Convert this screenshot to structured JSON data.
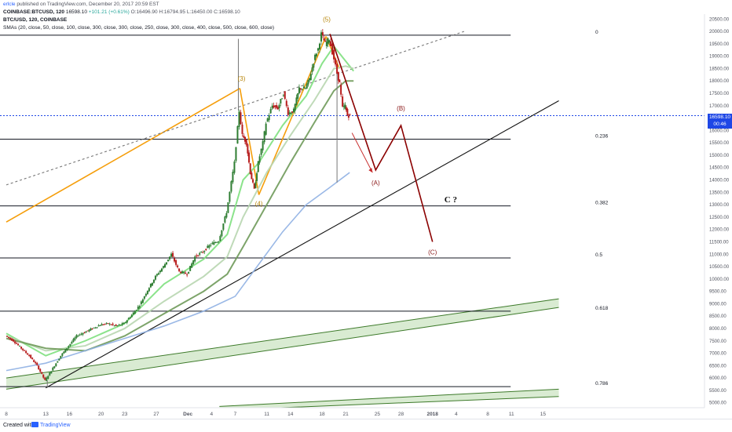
{
  "header": {
    "author": "erlcle",
    "published": "published on TradingView.com, December 20, 2017 20:59 EST",
    "symbol_line": {
      "symbol": "COINBASE:BTCUSD, 120",
      "price": "16598.10",
      "change": "+101.21 (+0.61%)",
      "ohlc": "O:16496.90 H:16794.95 L:16450.00 C:16598.10"
    },
    "instrument": "BTC/USD, 120, COINBASE",
    "indicators": "SMAs (20, close, 50, close, 100, close, 300, close, 300, close, 250, close, 300, close, 400, close, 500, close, 600, close)"
  },
  "footer": {
    "created_with": "Created with",
    "brand": "TradingView"
  },
  "price_box": {
    "value": "16598.10",
    "countdown": "00:46"
  },
  "colors": {
    "price_line": "#1e47e6",
    "fib": "#131722",
    "orange_wave": "#f59e0b",
    "red_wave": "#8b0000",
    "wave_label": "#b8860b",
    "red_label": "#8b1a1a",
    "sma_blue": "#8fb0e3",
    "channel_fill": "#cfe6c7",
    "channel_line": "#3d7a2a",
    "candle_up": "#2e7d32",
    "candle_down": "#b71c1c"
  },
  "chart_data": {
    "type": "candlestick",
    "symbol": "BTC/USD",
    "timeframe": "120",
    "exchange": "COINBASE",
    "y_axis": {
      "ylim": [
        4800,
        20700
      ],
      "ticks": [
        "20500.00",
        "20000.00",
        "19500.00",
        "19000.00",
        "18500.00",
        "18000.00",
        "17500.00",
        "17000.00",
        "16500.00",
        "16000.00",
        "15500.00",
        "15000.00",
        "14500.00",
        "14000.00",
        "13500.00",
        "13000.00",
        "12500.00",
        "12000.00",
        "11500.00",
        "11000.00",
        "10500.00",
        "10000.00",
        "9500.00",
        "9000.00",
        "8500.00",
        "8000.00",
        "7500.00",
        "7000.00",
        "6500.00",
        "6000.00",
        "5500.00",
        "5000.00"
      ]
    },
    "x_axis": {
      "labels": [
        "8",
        "13",
        "16",
        "20",
        "23",
        "27",
        "Dec",
        "4",
        "7",
        "11",
        "14",
        "18",
        "21",
        "25",
        "28",
        "2018",
        "4",
        "8",
        "11",
        "15"
      ],
      "day_index": [
        0,
        5,
        8,
        12,
        15,
        19,
        23,
        26,
        29,
        33,
        36,
        40,
        43,
        47,
        50,
        54,
        57,
        61,
        64,
        68
      ]
    },
    "price_path": [
      [
        0,
        7700
      ],
      [
        1,
        7500
      ],
      [
        2,
        7200
      ],
      [
        3,
        6900
      ],
      [
        4,
        6500
      ],
      [
        5,
        5900
      ],
      [
        6,
        6400
      ],
      [
        7,
        6900
      ],
      [
        8,
        7300
      ],
      [
        9,
        7700
      ],
      [
        10,
        7850
      ],
      [
        11,
        8000
      ],
      [
        12,
        8150
      ],
      [
        13,
        8200
      ],
      [
        14,
        8100
      ],
      [
        15,
        8200
      ],
      [
        16,
        8550
      ],
      [
        17,
        8950
      ],
      [
        18,
        9550
      ],
      [
        19,
        10100
      ],
      [
        20,
        10500
      ],
      [
        21,
        11000
      ],
      [
        22,
        10300
      ],
      [
        23,
        10200
      ],
      [
        24,
        10900
      ],
      [
        25,
        11100
      ],
      [
        26,
        11400
      ],
      [
        27,
        11550
      ],
      [
        28,
        12700
      ],
      [
        29,
        14700
      ],
      [
        29.6,
        16800
      ],
      [
        30,
        15800
      ],
      [
        30.5,
        15500
      ],
      [
        31,
        14300
      ],
      [
        31.5,
        13600
      ],
      [
        32,
        14700
      ],
      [
        32.6,
        15500
      ],
      [
        33,
        16300
      ],
      [
        33.8,
        17000
      ],
      [
        34.5,
        16900
      ],
      [
        35.2,
        17500
      ],
      [
        35.8,
        16700
      ],
      [
        36.5,
        16800
      ],
      [
        37.2,
        17700
      ],
      [
        38,
        17700
      ],
      [
        38.5,
        18100
      ],
      [
        39.2,
        19000
      ],
      [
        39.6,
        19300
      ],
      [
        40,
        19900
      ],
      [
        40.5,
        19500
      ],
      [
        41,
        19700
      ],
      [
        41.6,
        18900
      ],
      [
        42,
        18300
      ],
      [
        42.3,
        17900
      ],
      [
        42.7,
        16900
      ],
      [
        43,
        17000
      ],
      [
        43.3,
        16600
      ],
      [
        43.6,
        16598
      ]
    ],
    "wicks": [
      [
        29.4,
        19700
      ],
      [
        41.9,
        13900
      ],
      [
        5.2,
        5600
      ]
    ],
    "sma_lines": [
      {
        "name": "SMA 20",
        "color": "#7ee07e",
        "points": [
          [
            0,
            7800
          ],
          [
            5,
            6900
          ],
          [
            10,
            7500
          ],
          [
            15,
            8200
          ],
          [
            20,
            9800
          ],
          [
            25,
            10800
          ],
          [
            28,
            11800
          ],
          [
            30,
            14000
          ],
          [
            32,
            14700
          ],
          [
            35,
            16200
          ],
          [
            38,
            17400
          ],
          [
            40,
            18700
          ],
          [
            41.5,
            19400
          ],
          [
            43,
            18800
          ],
          [
            44,
            18400
          ]
        ]
      },
      {
        "name": "SMA 50",
        "color": "#b8d6b0",
        "points": [
          [
            0,
            7700
          ],
          [
            5,
            7100
          ],
          [
            10,
            7300
          ],
          [
            15,
            8000
          ],
          [
            20,
            9100
          ],
          [
            25,
            10100
          ],
          [
            28,
            10900
          ],
          [
            30,
            12500
          ],
          [
            33,
            14300
          ],
          [
            36,
            15800
          ],
          [
            39,
            17200
          ],
          [
            41.5,
            18500
          ],
          [
            43,
            18600
          ],
          [
            44,
            18500
          ]
        ]
      },
      {
        "name": "SMA 100",
        "color": "#6f9a5a",
        "points": [
          [
            0,
            7600
          ],
          [
            5,
            7200
          ],
          [
            10,
            7100
          ],
          [
            15,
            7700
          ],
          [
            20,
            8600
          ],
          [
            25,
            9500
          ],
          [
            28,
            10200
          ],
          [
            30,
            11300
          ],
          [
            33,
            13000
          ],
          [
            36,
            14700
          ],
          [
            39,
            16300
          ],
          [
            41.5,
            17600
          ],
          [
            43,
            18000
          ],
          [
            44,
            18000
          ]
        ]
      },
      {
        "name": "SMA 300",
        "color": "#8fb0e3",
        "points": [
          [
            0,
            6300
          ],
          [
            5,
            6600
          ],
          [
            10,
            7100
          ],
          [
            15,
            7600
          ],
          [
            20,
            8100
          ],
          [
            25,
            8700
          ],
          [
            29,
            9300
          ],
          [
            32,
            10600
          ],
          [
            35,
            11900
          ],
          [
            38,
            13000
          ],
          [
            41,
            13700
          ],
          [
            43.5,
            14300
          ]
        ]
      }
    ],
    "fib_levels": [
      {
        "label": "0",
        "price": 19850
      },
      {
        "label": "0.236",
        "price": 15650
      },
      {
        "label": "0.382",
        "price": 12950
      },
      {
        "label": "0.5",
        "price": 10850
      },
      {
        "label": "0.618",
        "price": 8700
      },
      {
        "label": "0.786",
        "price": 5650
      }
    ],
    "last_price": 16598.1,
    "trend_lines": [
      {
        "name": "orange-line",
        "from": [
          0,
          12300
        ],
        "to": [
          29.6,
          17700
        ]
      },
      {
        "name": "dashed-line",
        "from": [
          0,
          13800
        ],
        "to": [
          58,
          20000
        ]
      },
      {
        "name": "black-support",
        "from": [
          5,
          5600
        ],
        "to": [
          70,
          17200
        ]
      },
      {
        "name": "orange-wave-1",
        "from": [
          29.6,
          17700
        ],
        "to": [
          32,
          13400
        ]
      },
      {
        "name": "orange-wave-2",
        "from": [
          32,
          13400
        ],
        "to": [
          40.5,
          19800
        ]
      },
      {
        "name": "orange-wave-3",
        "from": [
          40.5,
          19800
        ],
        "to": [
          42.2,
          18500
        ]
      }
    ],
    "channels": [
      {
        "name": "upper-channel",
        "from_top": [
          0,
          6000
        ],
        "to_top": [
          70,
          9200
        ],
        "from_bottom": [
          0,
          5550
        ],
        "to_bottom": [
          70,
          8850
        ]
      },
      {
        "name": "lower-channel",
        "from_top": [
          27,
          4850
        ],
        "to_top": [
          70,
          5550
        ],
        "from_bottom": [
          27,
          4700
        ],
        "to_bottom": [
          70,
          5250
        ]
      }
    ],
    "projection": {
      "path": [
        [
          41,
          19900
        ],
        [
          46.8,
          14400
        ],
        [
          50,
          16200
        ],
        [
          54,
          11500
        ]
      ],
      "arrow": [
        [
          43.8,
          15900
        ],
        [
          46.4,
          14300
        ]
      ],
      "labels": [
        {
          "text": "(A)",
          "at": [
            46.8,
            13800
          ]
        },
        {
          "text": "(B)",
          "at": [
            50,
            16800
          ]
        },
        {
          "text": "(C)",
          "at": [
            54,
            11000
          ]
        }
      ]
    },
    "wave_labels": [
      {
        "text": "(3)",
        "at": [
          29.8,
          18000
        ]
      },
      {
        "text": "(4)",
        "at": [
          32,
          12950
        ]
      },
      {
        "text": "(5)",
        "at": [
          40.6,
          20400
        ]
      }
    ],
    "annotations": [
      {
        "text": "C ?",
        "at": [
          55.5,
          13100
        ]
      }
    ]
  }
}
